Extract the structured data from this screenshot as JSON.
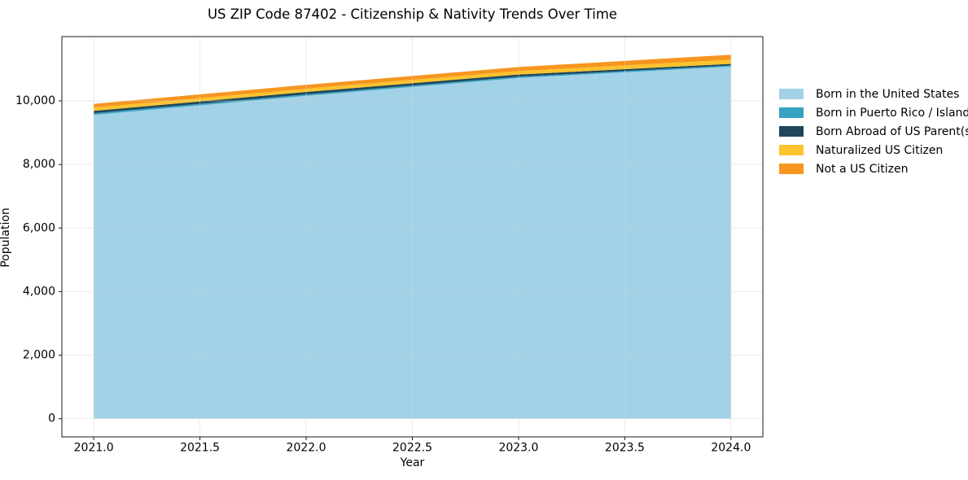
{
  "chart_data": {
    "type": "area",
    "stacked": true,
    "title": "US ZIP Code 87402 - Citizenship & Nativity Trends Over Time",
    "xlabel": "Year",
    "ylabel": "Population",
    "x": [
      2021,
      2022,
      2023,
      2024
    ],
    "series": [
      {
        "name": "Born in the United States",
        "color": "#A2D2E8",
        "values": [
          9560,
          10160,
          10720,
          11080
        ]
      },
      {
        "name": "Born in Puerto Rico / Islands",
        "color": "#38A2C2",
        "values": [
          50,
          45,
          40,
          35
        ]
      },
      {
        "name": "Born Abroad of US Parent(s)",
        "color": "#1F475C",
        "values": [
          75,
          75,
          70,
          50
        ]
      },
      {
        "name": "Naturalized US Citizen",
        "color": "#FCC32D",
        "values": [
          105,
          105,
          110,
          130
        ]
      },
      {
        "name": "Not a US Citizen",
        "color": "#F7951F",
        "values": [
          115,
          120,
          125,
          155
        ]
      }
    ],
    "totals": [
      9905,
      10505,
      11065,
      11450
    ],
    "xlim": [
      2020.85,
      2024.15
    ],
    "ylim": [
      -572,
      12022
    ],
    "xticks": [
      2021.0,
      2021.5,
      2022.0,
      2022.5,
      2023.0,
      2023.5,
      2024.0
    ],
    "xtick_labels": [
      "2021.0",
      "2021.5",
      "2022.0",
      "2022.5",
      "2023.0",
      "2023.5",
      "2024.0"
    ],
    "yticks": [
      0,
      2000,
      4000,
      6000,
      8000,
      10000
    ],
    "ytick_labels": [
      "0",
      "2,000",
      "4,000",
      "6,000",
      "8,000",
      "10,000"
    ],
    "grid": true,
    "grid_color": "#D3D3D3",
    "spine_color": "#1a1a1a",
    "legend_position": "right"
  }
}
